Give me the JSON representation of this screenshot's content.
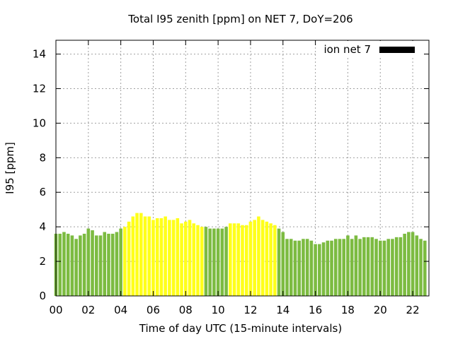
{
  "chart_data": {
    "type": "bar",
    "title": "Total I95 zenith [ppm] on NET 7, DoY=206",
    "xlabel": "Time of day UTC (15-minute intervals)",
    "ylabel": "I95 [ppm]",
    "xlim": [
      0,
      23
    ],
    "ylim": [
      0,
      14.8
    ],
    "x_ticks": [
      "00",
      "02",
      "04",
      "06",
      "08",
      "10",
      "12",
      "14",
      "16",
      "18",
      "20",
      "22"
    ],
    "y_ticks": [
      "0",
      "2",
      "4",
      "6",
      "8",
      "10",
      "12",
      "14"
    ],
    "grid": true,
    "legend_position": "top-right",
    "series": [
      {
        "name": "ion net 7",
        "legend_color": "#000000",
        "x": [
          0.0,
          0.25,
          0.5,
          0.75,
          1.0,
          1.25,
          1.5,
          1.75,
          2.0,
          2.25,
          2.5,
          2.75,
          3.0,
          3.25,
          3.5,
          3.75,
          4.0,
          4.25,
          4.5,
          4.75,
          5.0,
          5.25,
          5.5,
          5.75,
          6.0,
          6.25,
          6.5,
          6.75,
          7.0,
          7.25,
          7.5,
          7.75,
          8.0,
          8.25,
          8.5,
          8.75,
          9.0,
          9.25,
          9.5,
          9.75,
          10.0,
          10.25,
          10.5,
          10.75,
          11.0,
          11.25,
          11.5,
          11.75,
          12.0,
          12.25,
          12.5,
          12.75,
          13.0,
          13.25,
          13.5,
          13.75,
          14.0,
          14.25,
          14.5,
          14.75,
          15.0,
          15.25,
          15.5,
          15.75,
          16.0,
          16.25,
          16.5,
          16.75,
          17.0,
          17.25,
          17.5,
          17.75,
          18.0,
          18.25,
          18.5,
          18.75,
          19.0,
          19.25,
          19.5,
          19.75,
          20.0,
          20.25,
          20.5,
          20.75,
          21.0,
          21.25,
          21.5,
          21.75,
          22.0,
          22.25,
          22.5,
          22.75
        ],
        "values": [
          3.6,
          3.6,
          3.7,
          3.6,
          3.5,
          3.3,
          3.5,
          3.6,
          3.9,
          3.8,
          3.5,
          3.5,
          3.7,
          3.6,
          3.6,
          3.7,
          3.9,
          4.0,
          4.3,
          4.6,
          4.8,
          4.8,
          4.6,
          4.6,
          4.4,
          4.5,
          4.5,
          4.6,
          4.4,
          4.4,
          4.5,
          4.2,
          4.3,
          4.4,
          4.2,
          4.1,
          4.0,
          4.0,
          3.9,
          3.9,
          3.9,
          3.9,
          4.0,
          4.2,
          4.2,
          4.2,
          4.1,
          4.1,
          4.3,
          4.4,
          4.6,
          4.4,
          4.3,
          4.2,
          4.1,
          3.9,
          3.7,
          3.3,
          3.3,
          3.2,
          3.2,
          3.3,
          3.3,
          3.2,
          3.0,
          3.0,
          3.1,
          3.2,
          3.2,
          3.3,
          3.3,
          3.3,
          3.5,
          3.3,
          3.5,
          3.3,
          3.4,
          3.4,
          3.4,
          3.3,
          3.2,
          3.2,
          3.3,
          3.3,
          3.4,
          3.4,
          3.6,
          3.7,
          3.7,
          3.5,
          3.3,
          3.2
        ],
        "colors": [
          "#7cbb41",
          "#7cbb41",
          "#7cbb41",
          "#7cbb41",
          "#7cbb41",
          "#7cbb41",
          "#7cbb41",
          "#7cbb41",
          "#7cbb41",
          "#7cbb41",
          "#7cbb41",
          "#7cbb41",
          "#7cbb41",
          "#7cbb41",
          "#7cbb41",
          "#7cbb41",
          "#7cbb41",
          "#ffff1a",
          "#ffff1a",
          "#ffff1a",
          "#ffff1a",
          "#ffff1a",
          "#ffff1a",
          "#ffff1a",
          "#ffff1a",
          "#ffff1a",
          "#ffff1a",
          "#ffff1a",
          "#ffff1a",
          "#ffff1a",
          "#ffff1a",
          "#ffff1a",
          "#ffff1a",
          "#ffff1a",
          "#ffff1a",
          "#ffff1a",
          "#ffff1a",
          "#7cbb41",
          "#7cbb41",
          "#7cbb41",
          "#7cbb41",
          "#7cbb41",
          "#7cbb41",
          "#ffff1a",
          "#ffff1a",
          "#ffff1a",
          "#ffff1a",
          "#ffff1a",
          "#ffff1a",
          "#ffff1a",
          "#ffff1a",
          "#ffff1a",
          "#ffff1a",
          "#ffff1a",
          "#ffff1a",
          "#7cbb41",
          "#7cbb41",
          "#7cbb41",
          "#7cbb41",
          "#7cbb41",
          "#7cbb41",
          "#7cbb41",
          "#7cbb41",
          "#7cbb41",
          "#7cbb41",
          "#7cbb41",
          "#7cbb41",
          "#7cbb41",
          "#7cbb41",
          "#7cbb41",
          "#7cbb41",
          "#7cbb41",
          "#7cbb41",
          "#7cbb41",
          "#7cbb41",
          "#7cbb41",
          "#7cbb41",
          "#7cbb41",
          "#7cbb41",
          "#7cbb41",
          "#7cbb41",
          "#7cbb41",
          "#7cbb41",
          "#7cbb41",
          "#7cbb41",
          "#7cbb41",
          "#7cbb41",
          "#7cbb41",
          "#7cbb41",
          "#7cbb41",
          "#7cbb41",
          "#7cbb41"
        ]
      }
    ]
  }
}
